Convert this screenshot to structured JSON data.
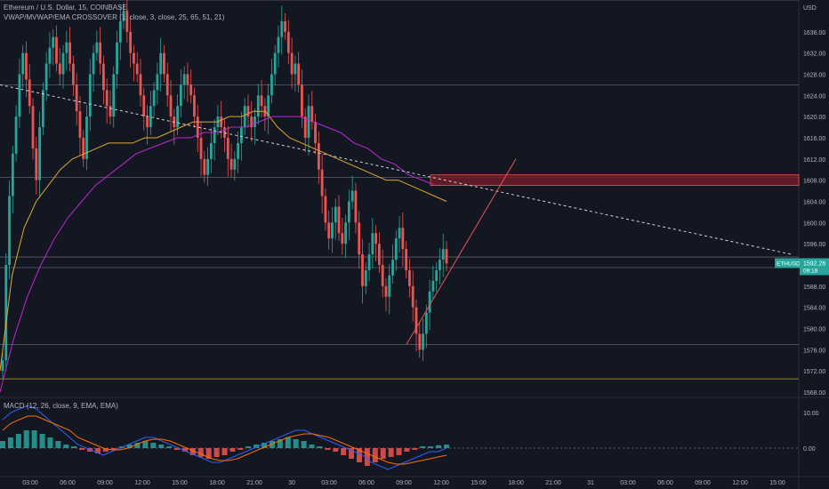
{
  "header": {
    "symbol_line": "Ethereum / U.S. Dollar, 15, COINBASE",
    "indicator_line": "VWAP/MVWAP/EMA CROSSOVER (1, close, 3, close, 25, 65, 51, 21)"
  },
  "macd_label": "MACD (12, 26, close, 9, EMA, EMA)",
  "currency": "USD",
  "price_tag": {
    "symbol": "ETHUSD",
    "price": "1592.26",
    "countdown": "09:18",
    "color": "#26a69a"
  },
  "colors": {
    "up": "#26a69a",
    "down": "#ef5350",
    "vwap": "#e1a82d",
    "ema": "#c026d3",
    "zone": "#7a1f2b",
    "zone_border": "#ef5350",
    "trend": "#ef5350",
    "level": "#5d606b",
    "level_yellow": "#c9a227",
    "bg": "#131722"
  },
  "chart_data": [
    {
      "type": "candlestick",
      "title": "Ethereum / U.S. Dollar, 15, COINBASE",
      "ylim": [
        1567,
        1642
      ],
      "y_ticks": [
        1568,
        1572,
        1576,
        1580,
        1584,
        1588,
        1592,
        1596,
        1600,
        1604,
        1608,
        1612,
        1616,
        1620,
        1624,
        1628,
        1632,
        1636
      ],
      "x_ticks": [
        "03:00",
        "06:00",
        "09:00",
        "12:00",
        "15:00",
        "18:00",
        "21:00",
        "30",
        "03:00",
        "06:00",
        "09:00",
        "12:00",
        "15:00",
        "18:00",
        "21:00",
        "31",
        "03:00",
        "06:00",
        "09:00",
        "12:00",
        "15:00"
      ],
      "closes": [
        1574,
        1592,
        1605,
        1613,
        1620,
        1628,
        1632,
        1627,
        1622,
        1614,
        1608,
        1618,
        1625,
        1630,
        1633,
        1635,
        1630,
        1628,
        1632,
        1634,
        1630,
        1626,
        1621,
        1616,
        1612,
        1620,
        1628,
        1632,
        1634,
        1630,
        1625,
        1622,
        1620,
        1628,
        1634,
        1638,
        1640,
        1636,
        1632,
        1630,
        1628,
        1624,
        1620,
        1618,
        1622,
        1625,
        1628,
        1632,
        1628,
        1624,
        1620,
        1618,
        1622,
        1626,
        1628,
        1626,
        1624,
        1620,
        1616,
        1612,
        1609,
        1612,
        1615,
        1618,
        1620,
        1618,
        1616,
        1612,
        1610,
        1612,
        1615,
        1618,
        1622,
        1620,
        1618,
        1620,
        1624,
        1622,
        1620,
        1624,
        1628,
        1632,
        1635,
        1638,
        1636,
        1632,
        1628,
        1630,
        1626,
        1620,
        1616,
        1622,
        1619,
        1615,
        1610,
        1605,
        1600,
        1597,
        1600,
        1603,
        1598,
        1596,
        1600,
        1604,
        1606,
        1600,
        1594,
        1588,
        1591,
        1594,
        1598,
        1596,
        1592,
        1588,
        1586,
        1590,
        1593,
        1597,
        1599,
        1595,
        1591,
        1588,
        1584,
        1579,
        1576,
        1579,
        1583,
        1587,
        1589,
        1591,
        1593,
        1595,
        1592.26
      ],
      "vwap": [
        1572,
        1590,
        1599,
        1604,
        1607,
        1610,
        1612,
        1613,
        1614,
        1615,
        1615,
        1615,
        1616,
        1616,
        1617,
        1618,
        1619,
        1619,
        1619,
        1620,
        1620,
        1621,
        1621,
        1618,
        1616,
        1615,
        1614,
        1613,
        1612,
        1611,
        1610,
        1609,
        1608,
        1608,
        1607,
        1606,
        1605,
        1604
      ],
      "ema": [
        1568,
        1578,
        1586,
        1592,
        1597,
        1601,
        1604,
        1607,
        1609,
        1611,
        1613,
        1614,
        1615,
        1616,
        1616,
        1617,
        1617,
        1618,
        1618,
        1619,
        1620,
        1620,
        1620,
        1619,
        1618,
        1617,
        1615,
        1614,
        1612,
        1611,
        1609,
        1608,
        1607
      ],
      "trend_lines": [
        {
          "kind": "dashed",
          "from": [
            0,
            1626
          ],
          "to": [
            890,
            1594
          ]
        },
        {
          "kind": "solid",
          "from": [
            457,
            1577
          ],
          "to": [
            580,
            1612
          ]
        }
      ],
      "zone": {
        "top": 1609,
        "bottom": 1607,
        "start_index": 484
      },
      "levels": [
        {
          "price": 1642,
          "color": "level"
        },
        {
          "price": 1626,
          "color": "level"
        },
        {
          "price": 1608.5,
          "color": "level"
        },
        {
          "price": 1593.5,
          "color": "level"
        },
        {
          "price": 1591.5,
          "color": "level"
        },
        {
          "price": 1577,
          "color": "level"
        },
        {
          "price": 1570.5,
          "color": "level_yellow"
        }
      ]
    },
    {
      "type": "macd",
      "title": "MACD (12, 26, close, 9, EMA, EMA)",
      "ylim": [
        -7,
        14
      ],
      "y_ticks": [
        0,
        10
      ],
      "y_tick_labels": [
        "0.00",
        "10.00"
      ],
      "histogram": [
        2,
        3,
        4,
        5,
        5,
        4,
        3,
        2,
        1,
        0.5,
        -0.5,
        -1,
        -1.5,
        -1,
        -0.5,
        0.5,
        1,
        1.5,
        2,
        1.5,
        1,
        0.5,
        -0.5,
        -1,
        -2,
        -2.5,
        -3,
        -2.5,
        -2,
        -1,
        -0.5,
        0.5,
        1,
        1.5,
        2,
        2.5,
        3,
        2.5,
        2,
        1,
        0.5,
        -0.5,
        -1,
        -2,
        -3,
        -4,
        -5,
        -4,
        -3,
        -2.5,
        -2,
        -1,
        -0.5,
        0.5,
        0.5,
        0.8,
        1
      ],
      "macd_line": [
        8,
        10,
        11,
        12,
        11,
        9,
        7,
        5,
        3,
        1,
        0,
        -1,
        -2,
        -1,
        0,
        1,
        2,
        3,
        3,
        2,
        1,
        0,
        -1,
        -2,
        -3,
        -4,
        -4,
        -3,
        -2,
        -1,
        0,
        1,
        2,
        3,
        4,
        5,
        5,
        4,
        3,
        2,
        1,
        0,
        -1,
        -2,
        -4,
        -5,
        -6,
        -5,
        -4,
        -3,
        -2,
        -1,
        -1,
        0
      ],
      "signal_line": [
        5,
        7,
        8,
        9,
        9,
        8,
        7,
        6,
        5,
        3,
        2,
        1,
        0,
        -0.5,
        -0.5,
        0,
        1,
        2,
        2.5,
        2.5,
        2,
        1,
        0,
        -1,
        -2,
        -3,
        -3.5,
        -3.5,
        -3,
        -2,
        -1,
        0,
        1,
        2,
        3,
        3.5,
        4,
        4,
        3.5,
        3,
        2,
        1,
        0,
        -1,
        -2,
        -3,
        -4,
        -4.5,
        -4.5,
        -4,
        -3.5,
        -3,
        -2.5,
        -2
      ]
    }
  ]
}
